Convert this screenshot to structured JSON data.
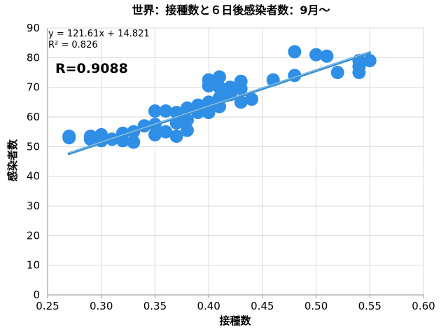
{
  "chart_data": {
    "type": "scatter",
    "title": "世界：接種数と６日後感染者数：9月〜",
    "xlabel": "接種数",
    "ylabel": "感染者数",
    "xlim": [
      0.25,
      0.6
    ],
    "ylim": [
      0,
      90
    ],
    "xticks": [
      "0.25",
      "0.30",
      "0.35",
      "0.40",
      "0.45",
      "0.50",
      "0.55",
      "0.60"
    ],
    "yticks": [
      "0",
      "10",
      "20",
      "30",
      "40",
      "50",
      "60",
      "70",
      "80",
      "90"
    ],
    "grid": true,
    "trendline": {
      "equation": "y = 121.61x + 14.821",
      "r2": "R² = 0.826",
      "slope": 121.61,
      "intercept": 14.821,
      "x_range": [
        0.27,
        0.55
      ]
    },
    "correlation_label": "R=0.9088",
    "points": [
      {
        "x": 0.27,
        "y": 53.5
      },
      {
        "x": 0.27,
        "y": 53.0
      },
      {
        "x": 0.29,
        "y": 53.5
      },
      {
        "x": 0.29,
        "y": 52.5
      },
      {
        "x": 0.3,
        "y": 54.0
      },
      {
        "x": 0.3,
        "y": 52.0
      },
      {
        "x": 0.31,
        "y": 52.5
      },
      {
        "x": 0.32,
        "y": 54.5
      },
      {
        "x": 0.32,
        "y": 52.0
      },
      {
        "x": 0.33,
        "y": 55.0
      },
      {
        "x": 0.33,
        "y": 51.5
      },
      {
        "x": 0.34,
        "y": 57.0
      },
      {
        "x": 0.35,
        "y": 62.0
      },
      {
        "x": 0.35,
        "y": 54.0
      },
      {
        "x": 0.35,
        "y": 57.5
      },
      {
        "x": 0.36,
        "y": 62.0
      },
      {
        "x": 0.36,
        "y": 55.0
      },
      {
        "x": 0.37,
        "y": 61.5
      },
      {
        "x": 0.37,
        "y": 53.5
      },
      {
        "x": 0.37,
        "y": 58.0
      },
      {
        "x": 0.38,
        "y": 63.0
      },
      {
        "x": 0.38,
        "y": 59.0
      },
      {
        "x": 0.38,
        "y": 55.5
      },
      {
        "x": 0.39,
        "y": 61.5
      },
      {
        "x": 0.39,
        "y": 64.0
      },
      {
        "x": 0.4,
        "y": 72.5
      },
      {
        "x": 0.4,
        "y": 70.5
      },
      {
        "x": 0.4,
        "y": 65.0
      },
      {
        "x": 0.4,
        "y": 61.5
      },
      {
        "x": 0.41,
        "y": 73.5
      },
      {
        "x": 0.41,
        "y": 70.0
      },
      {
        "x": 0.41,
        "y": 66.5
      },
      {
        "x": 0.41,
        "y": 63.5
      },
      {
        "x": 0.42,
        "y": 70.0
      },
      {
        "x": 0.42,
        "y": 67.5
      },
      {
        "x": 0.43,
        "y": 72.0
      },
      {
        "x": 0.43,
        "y": 69.5
      },
      {
        "x": 0.43,
        "y": 65.0
      },
      {
        "x": 0.44,
        "y": 66.0
      },
      {
        "x": 0.46,
        "y": 72.5
      },
      {
        "x": 0.48,
        "y": 82.0
      },
      {
        "x": 0.48,
        "y": 74.0
      },
      {
        "x": 0.5,
        "y": 81.0
      },
      {
        "x": 0.51,
        "y": 80.5
      },
      {
        "x": 0.52,
        "y": 75.0
      },
      {
        "x": 0.54,
        "y": 79.0
      },
      {
        "x": 0.54,
        "y": 75.0
      },
      {
        "x": 0.54,
        "y": 77.0
      },
      {
        "x": 0.55,
        "y": 79.0
      }
    ],
    "colors": {
      "point": "#2F8EE6",
      "trendline": "#3A8FD0",
      "trendline_highlight": "#8EC8F0",
      "grid": "#D9D9D9",
      "axis": "#8C8C8C"
    }
  }
}
